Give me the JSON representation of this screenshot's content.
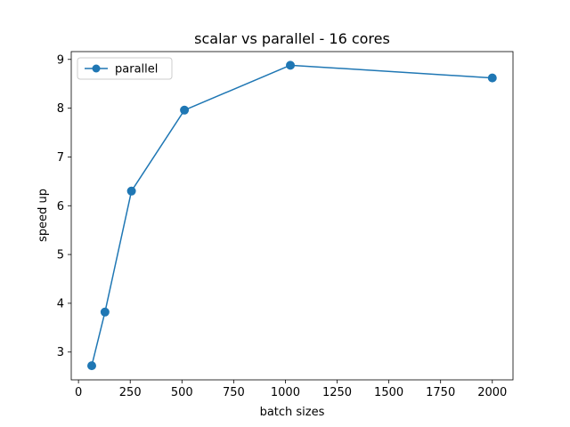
{
  "chart_data": {
    "type": "line",
    "title": "scalar vs parallel - 16 cores",
    "xlabel": "batch sizes",
    "ylabel": "speed up",
    "xlim": [
      -35,
      2100
    ],
    "ylim": [
      2.43,
      9.16
    ],
    "xticks": [
      0,
      250,
      500,
      750,
      1000,
      1250,
      1500,
      1750,
      2000
    ],
    "yticks": [
      3,
      4,
      5,
      6,
      7,
      8,
      9
    ],
    "grid": false,
    "legend_position": "top-left",
    "series": [
      {
        "name": "parallel",
        "color": "#1f77b4",
        "marker": "circle",
        "x": [
          64,
          128,
          256,
          512,
          1024,
          2000
        ],
        "y": [
          2.72,
          3.82,
          6.3,
          7.96,
          8.88,
          8.62
        ]
      }
    ]
  }
}
